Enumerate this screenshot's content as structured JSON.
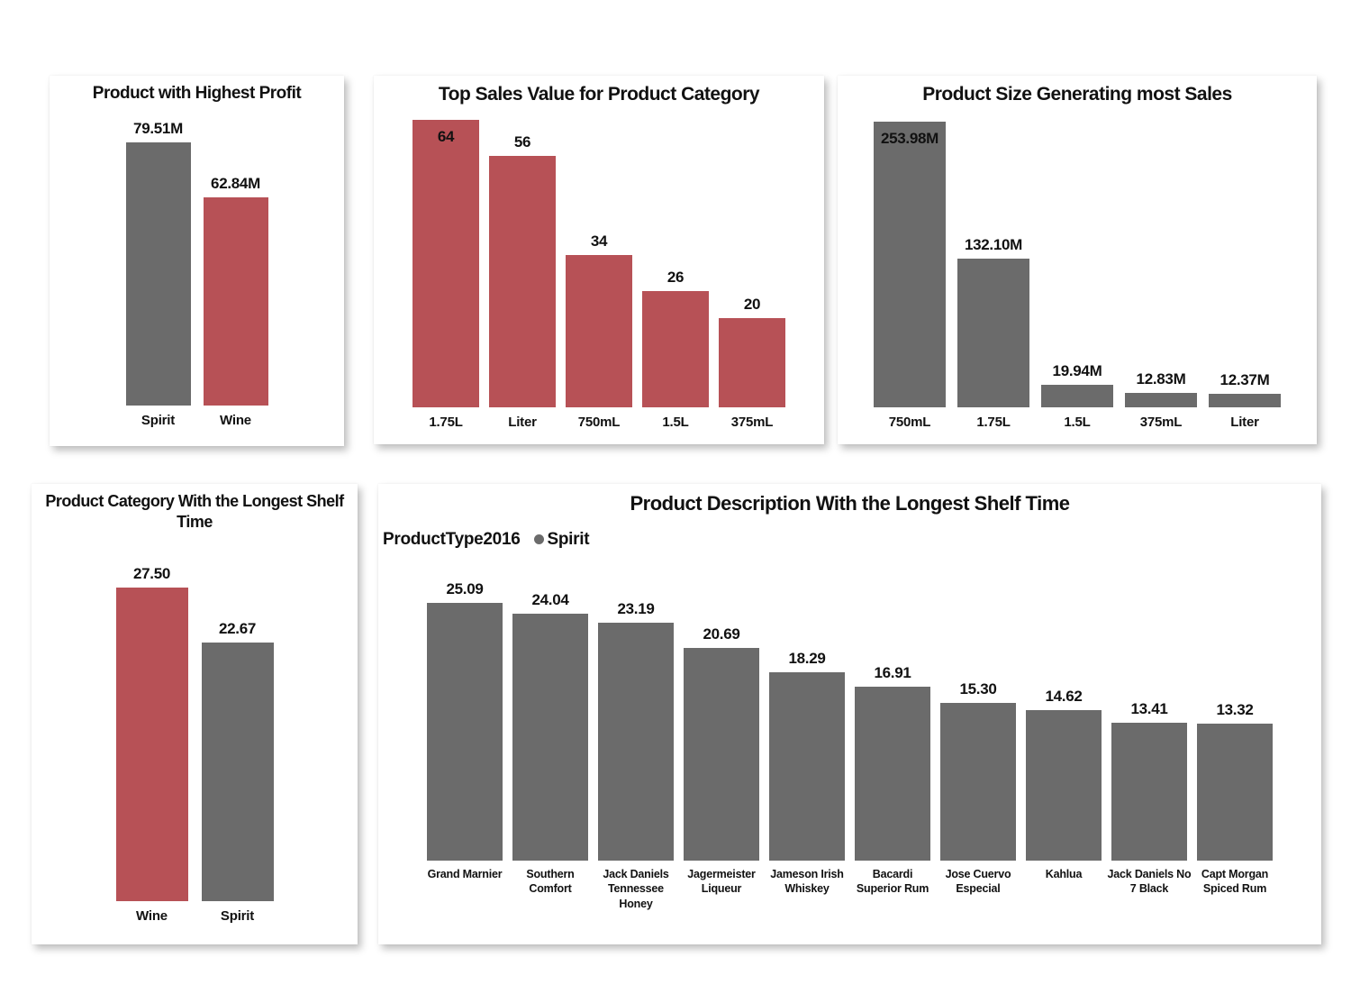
{
  "page": {
    "background": "#ffffff"
  },
  "palette": {
    "bar_gray": "#6b6b6b",
    "bar_red": "#b75156",
    "text": "#111111",
    "card_background": "#ffffff"
  },
  "chart_data": [
    {
      "type": "bar",
      "title": "Product with Highest Profit",
      "categories": [
        "Spirit",
        "Wine"
      ],
      "values": [
        79.51,
        62.84
      ],
      "value_labels": [
        "79.51M",
        "62.84M"
      ],
      "bar_colors": [
        "gray",
        "red"
      ],
      "ylim": [
        0,
        90
      ],
      "grid": false,
      "legend_position": "none"
    },
    {
      "type": "bar",
      "title": "Top Sales Value for Product Category",
      "categories": [
        "1.75L",
        "Liter",
        "750mL",
        "1.5L",
        "375mL"
      ],
      "values": [
        64,
        56,
        34,
        26,
        20
      ],
      "value_labels": [
        "64",
        "56",
        "34",
        "26",
        "20"
      ],
      "bar_colors": [
        "red",
        "red",
        "red",
        "red",
        "red"
      ],
      "ylim": [
        0,
        64
      ],
      "grid": false,
      "legend_position": "none"
    },
    {
      "type": "bar",
      "title": "Product Size Generating most Sales",
      "categories": [
        "750mL",
        "1.75L",
        "1.5L",
        "375mL",
        "Liter"
      ],
      "values": [
        253.98,
        132.1,
        19.94,
        12.83,
        12.37
      ],
      "value_labels": [
        "253.98M",
        "132.10M",
        "19.94M",
        "12.83M",
        "12.37M"
      ],
      "bar_colors": [
        "gray",
        "gray",
        "gray",
        "gray",
        "gray"
      ],
      "ylim": [
        0,
        255
      ],
      "grid": false,
      "legend_position": "none"
    },
    {
      "type": "bar",
      "title": "Product Category With the Longest Shelf Time",
      "categories": [
        "Wine",
        "Spirit"
      ],
      "values": [
        27.5,
        22.67
      ],
      "value_labels": [
        "27.50",
        "22.67"
      ],
      "bar_colors": [
        "red",
        "gray"
      ],
      "ylim": [
        0,
        31.5
      ],
      "grid": false,
      "legend_position": "none"
    },
    {
      "type": "bar",
      "title": "Product Description With the Longest Shelf Time",
      "legend": {
        "field_label": "ProductType2016",
        "item_label": "Spirit",
        "marker_color": "gray"
      },
      "categories": [
        "Grand Marnier",
        "Southern Comfort",
        "Jack Daniels Tennessee Honey",
        "Jagermeister Liqueur",
        "Jameson Irish Whiskey",
        "Bacardi Superior Rum",
        "Jose Cuervo Especial",
        "Kahlua",
        "Jack Daniels No 7 Black",
        "Capt Morgan Spiced Rum"
      ],
      "values": [
        25.09,
        24.04,
        23.19,
        20.69,
        18.29,
        16.91,
        15.3,
        14.62,
        13.41,
        13.32
      ],
      "value_labels": [
        "25.09",
        "24.04",
        "23.19",
        "20.69",
        "18.29",
        "16.91",
        "15.30",
        "14.62",
        "13.41",
        "13.32"
      ],
      "bar_colors": [
        "gray",
        "gray",
        "gray",
        "gray",
        "gray",
        "gray",
        "gray",
        "gray",
        "gray",
        "gray"
      ],
      "ylim": [
        0,
        29
      ],
      "grid": false,
      "legend_position": "top-left"
    }
  ]
}
